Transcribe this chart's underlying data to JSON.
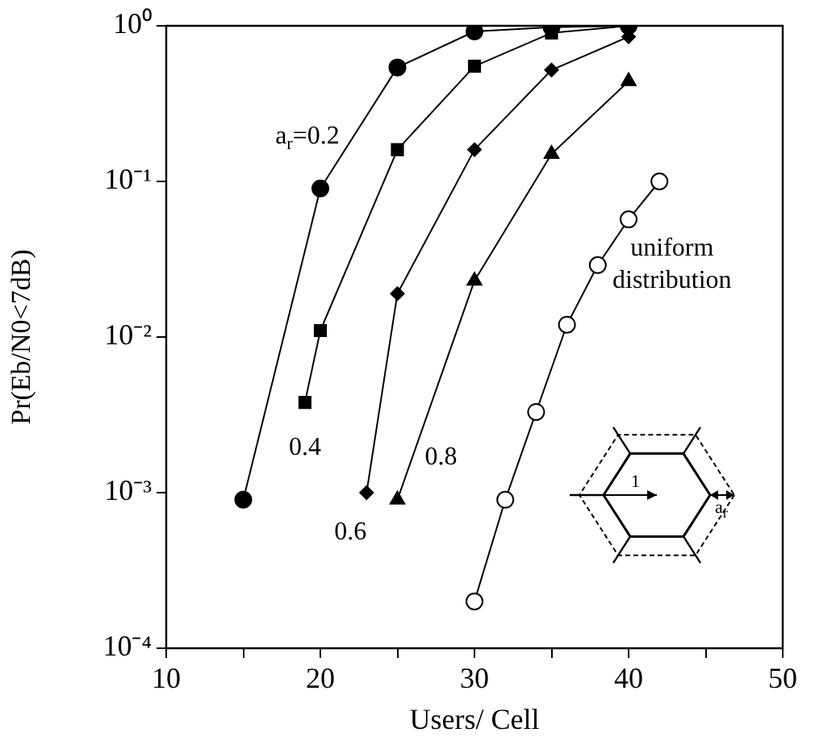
{
  "chart_data": {
    "type": "line",
    "xlabel": "Users/ Cell",
    "ylabel": "Pr(Eb/N0<7dB)",
    "log": "y",
    "xlim": [
      10,
      50
    ],
    "xticks": [
      10,
      {
        "value": 15,
        "label": null
      },
      20,
      {
        "value": 25,
        "label": null
      },
      30,
      {
        "value": 35,
        "label": null
      },
      40,
      {
        "value": 45,
        "label": null
      },
      50
    ],
    "ylim": [
      0.0001,
      1
    ],
    "yticks": [
      {
        "value": 0.0001,
        "label": "10⁻⁴"
      },
      {
        "value": 0.001,
        "label": "10⁻³"
      },
      {
        "value": 0.01,
        "label": "10⁻²"
      },
      {
        "value": 0.1,
        "label": "10⁻¹"
      },
      {
        "value": 1,
        "label": "10⁰"
      }
    ],
    "grid": false,
    "legend": false,
    "line_style": "solid",
    "annotations": [
      "1",
      "a$_{r}$"
    ],
    "series": [
      {
        "name": "a$_{r}$=0.2",
        "color": "#000000",
        "marker": "circle",
        "x": [
          15,
          20,
          25,
          30,
          35,
          40
        ],
        "values": [
          0.0009,
          0.09,
          0.54,
          0.92,
          0.98,
          1.0
        ]
      },
      {
        "name": "0.4",
        "color": "#000000",
        "marker": "square",
        "x": [
          19,
          20,
          25,
          30,
          35,
          40
        ],
        "values": [
          0.0038,
          0.011,
          0.16,
          0.55,
          0.9,
          1.0
        ]
      },
      {
        "name": "0.6",
        "color": "#000000",
        "marker": "diamond",
        "x": [
          23,
          25,
          30,
          35,
          40
        ],
        "values": [
          0.001,
          0.019,
          0.16,
          0.52,
          0.85
        ]
      },
      {
        "name": "0.8",
        "color": "#000000",
        "marker": "triangle",
        "x": [
          25,
          30,
          35,
          40
        ],
        "values": [
          0.0009,
          0.023,
          0.15,
          0.44
        ]
      },
      {
        "name": "uniform distribution",
        "color": "#000000",
        "marker": "circle-open",
        "x": [
          30,
          32,
          34,
          36,
          38,
          40,
          42
        ],
        "values": [
          0.0002,
          0.0009,
          0.0033,
          0.012,
          0.029,
          0.057,
          0.1
        ]
      }
    ]
  }
}
